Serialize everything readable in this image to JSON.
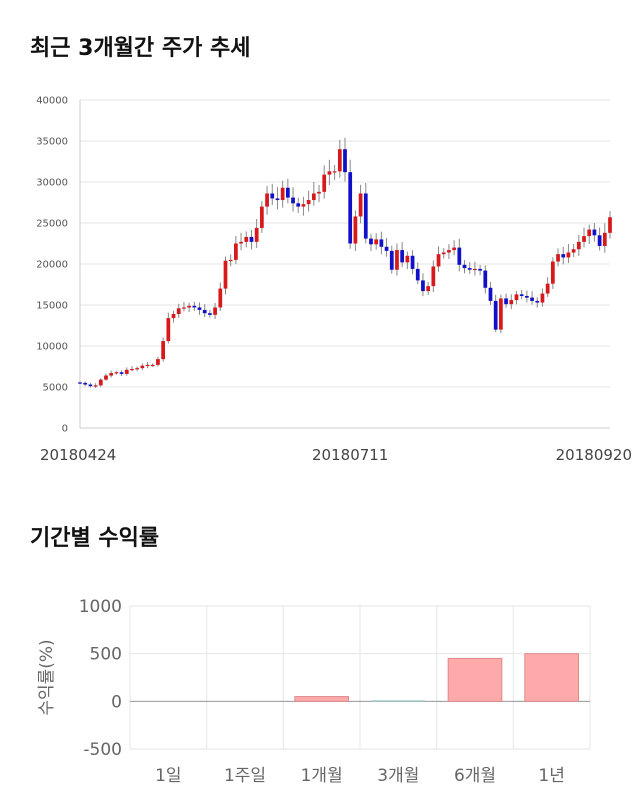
{
  "titles": {
    "price_chart": "최근 3개월간 주가 추세",
    "returns_chart": "기간별 수익률"
  },
  "colors": {
    "up": "#d7191c",
    "down": "#1010c8",
    "wick": "#888888",
    "grid": "#e6e6e6",
    "bar": "#ffaaaa",
    "bar_stroke": "#e08a8a",
    "flat_bar": "#9fc6c6"
  },
  "chart_data": [
    {
      "type": "candlestick",
      "title": "",
      "ylim": [
        0,
        40000
      ],
      "yticks": [
        0,
        5000,
        10000,
        15000,
        20000,
        25000,
        30000,
        35000,
        40000
      ],
      "xtick_labels": [
        {
          "label": "20180424",
          "index": 0
        },
        {
          "label": "20180711",
          "index": 52
        },
        {
          "label": "20180920",
          "index": 100
        }
      ],
      "closes": [
        5500,
        5300,
        5100,
        5200,
        5900,
        6400,
        6700,
        6800,
        6600,
        7100,
        7200,
        7300,
        7600,
        7700,
        7700,
        8400,
        10600,
        13400,
        13900,
        14600,
        14700,
        14900,
        14700,
        14400,
        14000,
        13800,
        14700,
        17000,
        20400,
        20500,
        22500,
        22700,
        23300,
        22700,
        24400,
        27000,
        28600,
        28000,
        27800,
        29300,
        28100,
        27400,
        27000,
        27300,
        27800,
        28600,
        28800,
        30900,
        31300,
        31300,
        34000,
        31200,
        22500,
        25800,
        28600,
        23100,
        22400,
        23000,
        22100,
        21600,
        19300,
        21700,
        20200,
        21000,
        19400,
        18000,
        16700,
        17300,
        19700,
        21200,
        21400,
        21700,
        22000,
        19900,
        19500,
        19300,
        19400,
        19200,
        17100,
        15500,
        12000,
        15800,
        15100,
        15600,
        16300,
        16100,
        15900,
        15500,
        15300,
        16400,
        17600,
        20300,
        21200,
        20800,
        21400,
        21800,
        22700,
        23400,
        24200,
        23500,
        22200,
        23800,
        25700
      ],
      "series": [
        {
          "values": [
            5500,
            5300,
            5100,
            5200,
            5900,
            6400,
            6700,
            6800,
            6600,
            7100,
            7200,
            7300,
            7600,
            7700,
            7700,
            8400,
            10600,
            13400,
            13900,
            14600,
            14700,
            14900,
            14700,
            14400,
            14000,
            13800,
            14700,
            17000,
            20400,
            20500,
            22500,
            22700,
            23300,
            22700,
            24400,
            27000,
            28600,
            28000,
            27800,
            29300,
            28100,
            27400,
            27000,
            27300,
            27800,
            28600,
            28800,
            30900,
            31300,
            31300,
            34000,
            31200,
            22500,
            25800,
            28600,
            23100,
            22400,
            23000,
            22100,
            21600,
            19300,
            21700,
            20200,
            21000,
            19400,
            18000,
            16700,
            17300,
            19700,
            21200,
            21400,
            21700,
            22000,
            19900,
            19500,
            19300,
            19400,
            19200,
            17100,
            15500,
            12000,
            15800,
            15100,
            15600,
            16300,
            16100,
            15900,
            15500,
            15300,
            16400,
            17600,
            20300,
            21200,
            20800,
            21400,
            21800,
            22700,
            23400,
            24200,
            23500,
            22200,
            23800,
            25700
          ]
        }
      ]
    },
    {
      "type": "bar",
      "title": "",
      "categories": [
        "1일",
        "1주일",
        "1개월",
        "3개월",
        "6개월",
        "1년"
      ],
      "values": [
        0,
        0,
        50,
        5,
        450,
        500
      ],
      "ylabel": "수익률(%)",
      "ylim": [
        -500,
        1000
      ],
      "yticks": [
        -500,
        0,
        500,
        1000
      ]
    }
  ]
}
